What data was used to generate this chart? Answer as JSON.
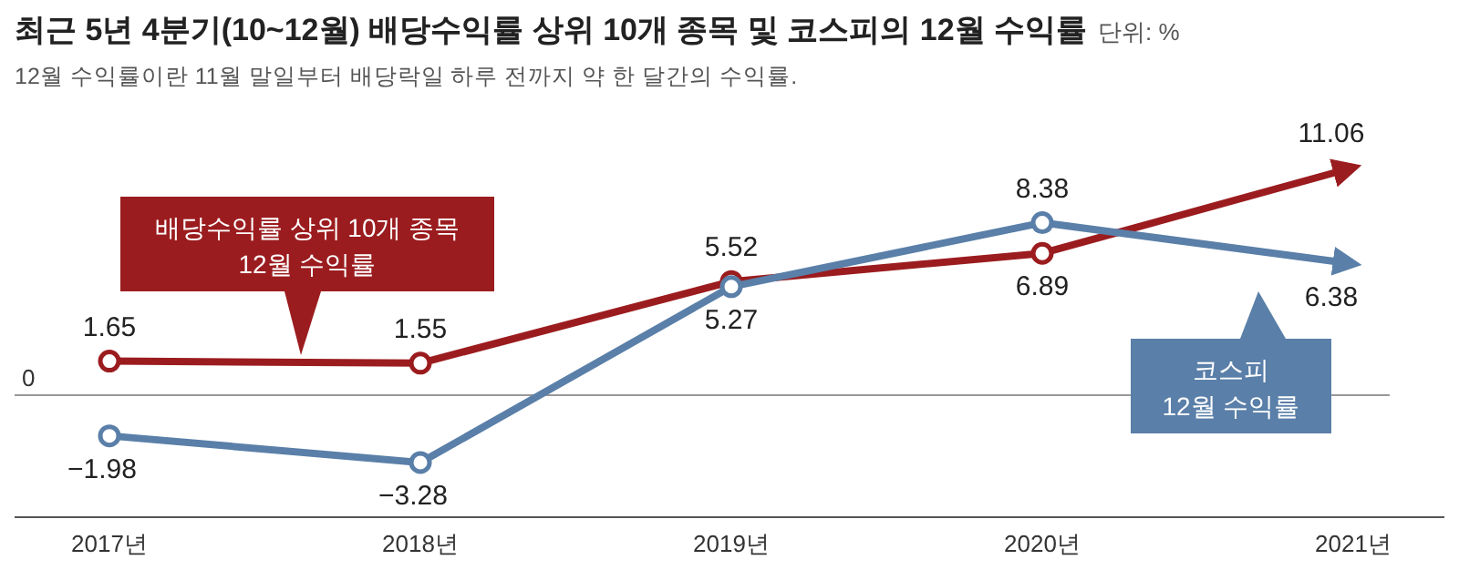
{
  "chart_data": {
    "type": "line",
    "title": "최근 5년 4분기(10~12월) 배당수익률 상위 10개 종목 및 코스피의 12월 수익률",
    "subtitle": "12월 수익률이란 11월 말일부터 배당락일 하루 전까지 약 한 달간의 수익률.",
    "annotations": [
      "단위: %"
    ],
    "categories": [
      "2017년",
      "2018년",
      "2019년",
      "2020년",
      "2021년"
    ],
    "series": [
      {
        "name": "배당수익률 상위 10개 종목\n12월 수익률",
        "color": "#9b1c1f",
        "values": [
          1.65,
          1.55,
          5.52,
          6.89,
          11.06
        ]
      },
      {
        "name": "코스피\n12월 수익률",
        "color": "#5a7fa8",
        "values": [
          -1.98,
          -3.28,
          5.27,
          8.38,
          6.38
        ]
      }
    ],
    "ref_lines": [
      {
        "axis": "y",
        "value": 0,
        "label": "0",
        "color": "#999999"
      }
    ],
    "marker": "circle",
    "data_labels": true
  }
}
